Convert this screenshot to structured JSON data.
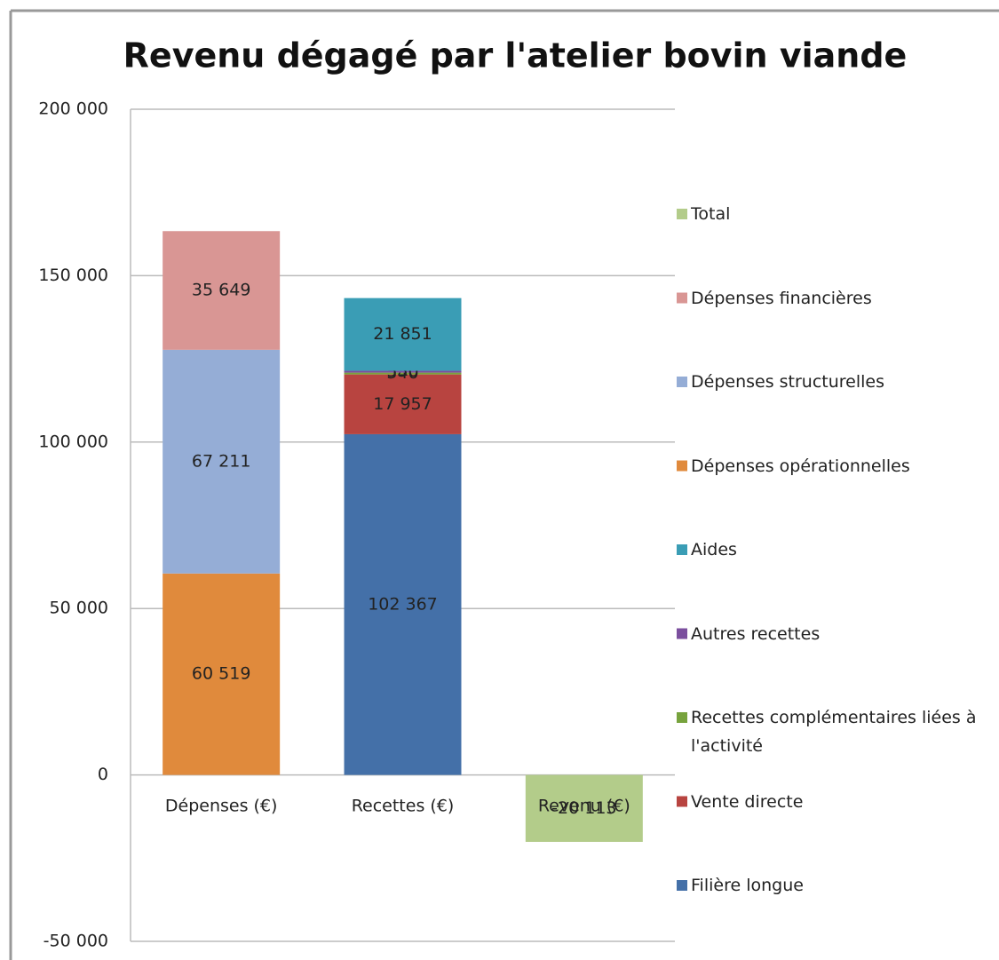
{
  "chart_data": {
    "type": "stacked_bar",
    "title": "Revenu dégagé par l'atelier bovin viande",
    "categories": [
      "Dépenses (€)",
      "Recettes (€)",
      "Revenu (€)"
    ],
    "series": [
      {
        "name": "Total",
        "color": "#b3cc8a",
        "values": [
          null,
          null,
          -20113
        ],
        "value_labels": [
          null,
          null,
          "-20 113"
        ]
      },
      {
        "name": "Dépenses financières",
        "color": "#d99694",
        "values": [
          35649,
          null,
          null
        ],
        "value_labels": [
          "35 649",
          null,
          null
        ]
      },
      {
        "name": "Dépenses structurelles",
        "color": "#95add6",
        "values": [
          67211,
          null,
          null
        ],
        "value_labels": [
          "67 211",
          null,
          null
        ]
      },
      {
        "name": "Dépenses opérationnelles",
        "color": "#e08a3c",
        "values": [
          60519,
          null,
          null
        ],
        "value_labels": [
          "60 519",
          null,
          null
        ]
      },
      {
        "name": "Aides",
        "color": "#3a9db5",
        "values": [
          null,
          21851,
          null
        ],
        "value_labels": [
          null,
          "21 851",
          null
        ]
      },
      {
        "name": "Autres recettes",
        "color": "#7b4f9e",
        "values": [
          null,
          550,
          null
        ],
        "value_labels": [
          null,
          "550",
          null
        ]
      },
      {
        "name": "Recettes complémentaires liées à l'activité",
        "color": "#77a33d",
        "values": [
          null,
          540,
          null
        ],
        "value_labels": [
          null,
          "540",
          null
        ]
      },
      {
        "name": "Vente directe",
        "color": "#b84440",
        "values": [
          null,
          17957,
          null
        ],
        "value_labels": [
          null,
          "17 957",
          null
        ]
      },
      {
        "name": "Filière longue",
        "color": "#4470a8",
        "values": [
          null,
          102367,
          null
        ],
        "value_labels": [
          null,
          "102 367",
          null
        ]
      }
    ],
    "ylim": [
      -50000,
      200000
    ],
    "yticks": [
      {
        "value": -50000,
        "label": "-50 000"
      },
      0,
      {
        "value": 50000,
        "label": "50 000"
      },
      {
        "value": 100000,
        "label": "100 000"
      },
      {
        "value": 150000,
        "label": "150 000"
      },
      {
        "value": 200000,
        "label": "200 000"
      }
    ],
    "grid": true,
    "legend": "right"
  }
}
